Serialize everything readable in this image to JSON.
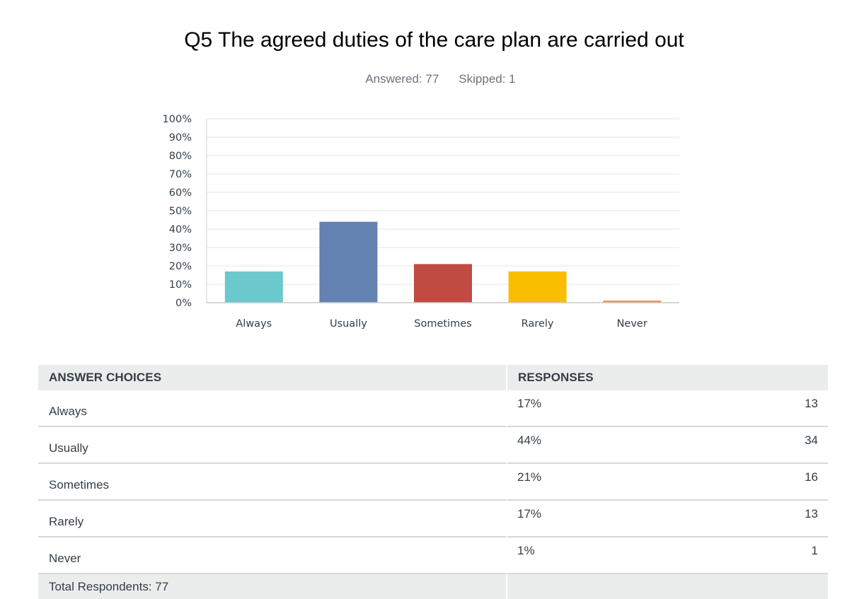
{
  "question": {
    "title": "Q5 The agreed duties of the care plan are carried out",
    "answered_label": "Answered: 77",
    "skipped_label": "Skipped: 1"
  },
  "chart_data": {
    "type": "bar",
    "categories": [
      "Always",
      "Usually",
      "Sometimes",
      "Rarely",
      "Never"
    ],
    "values": [
      17,
      44,
      21,
      17,
      1
    ],
    "colors": [
      "#6bc8cd",
      "#6382b1",
      "#c04b43",
      "#f9be00",
      "#ff8b4f"
    ],
    "ylim": [
      0,
      100
    ],
    "yticks": [
      "0%",
      "10%",
      "20%",
      "30%",
      "40%",
      "50%",
      "60%",
      "70%",
      "80%",
      "90%",
      "100%"
    ],
    "grid": true,
    "title": "",
    "xlabel": "",
    "ylabel": ""
  },
  "table": {
    "headers": [
      "ANSWER CHOICES",
      "RESPONSES"
    ],
    "rows": [
      {
        "choice": "Always",
        "percent": "17%",
        "count": "13"
      },
      {
        "choice": "Usually",
        "percent": "44%",
        "count": "34"
      },
      {
        "choice": "Sometimes",
        "percent": "21%",
        "count": "16"
      },
      {
        "choice": "Rarely",
        "percent": "17%",
        "count": "13"
      },
      {
        "choice": "Never",
        "percent": "1%",
        "count": "1"
      }
    ],
    "total_label": "Total Respondents: 77"
  }
}
